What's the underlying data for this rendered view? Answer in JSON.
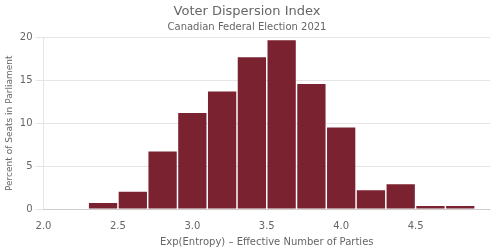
{
  "chart_data": {
    "type": "histogram",
    "title": "Voter Dispersion Index",
    "subtitle": "Canadian Federal Election 2021",
    "xlabel": "Exp(Entropy) – Effective Number of Parties",
    "ylabel": "Percent of Seats in Parliament",
    "bins": [
      2.3,
      2.5,
      2.7,
      2.9,
      3.1,
      3.3,
      3.5,
      3.7,
      3.9,
      4.1,
      4.3,
      4.5,
      4.7,
      4.9
    ],
    "values": [
      0.7,
      2.0,
      6.7,
      11.2,
      13.7,
      17.7,
      19.7,
      14.6,
      9.5,
      2.2,
      2.9,
      0.35,
      0.35
    ],
    "color": "#7B2230",
    "xlim": [
      2.0,
      5.0
    ],
    "xticks": [
      {
        "value": 2.0,
        "label": "2.0"
      },
      2.5,
      {
        "value": 3.0,
        "label": "3.0"
      },
      3.5,
      {
        "value": 4.0,
        "label": "4.0"
      },
      4.5
    ],
    "ylim": [
      0,
      20
    ],
    "yticks": [
      0,
      5,
      10,
      15,
      20
    ],
    "grid": "y"
  }
}
